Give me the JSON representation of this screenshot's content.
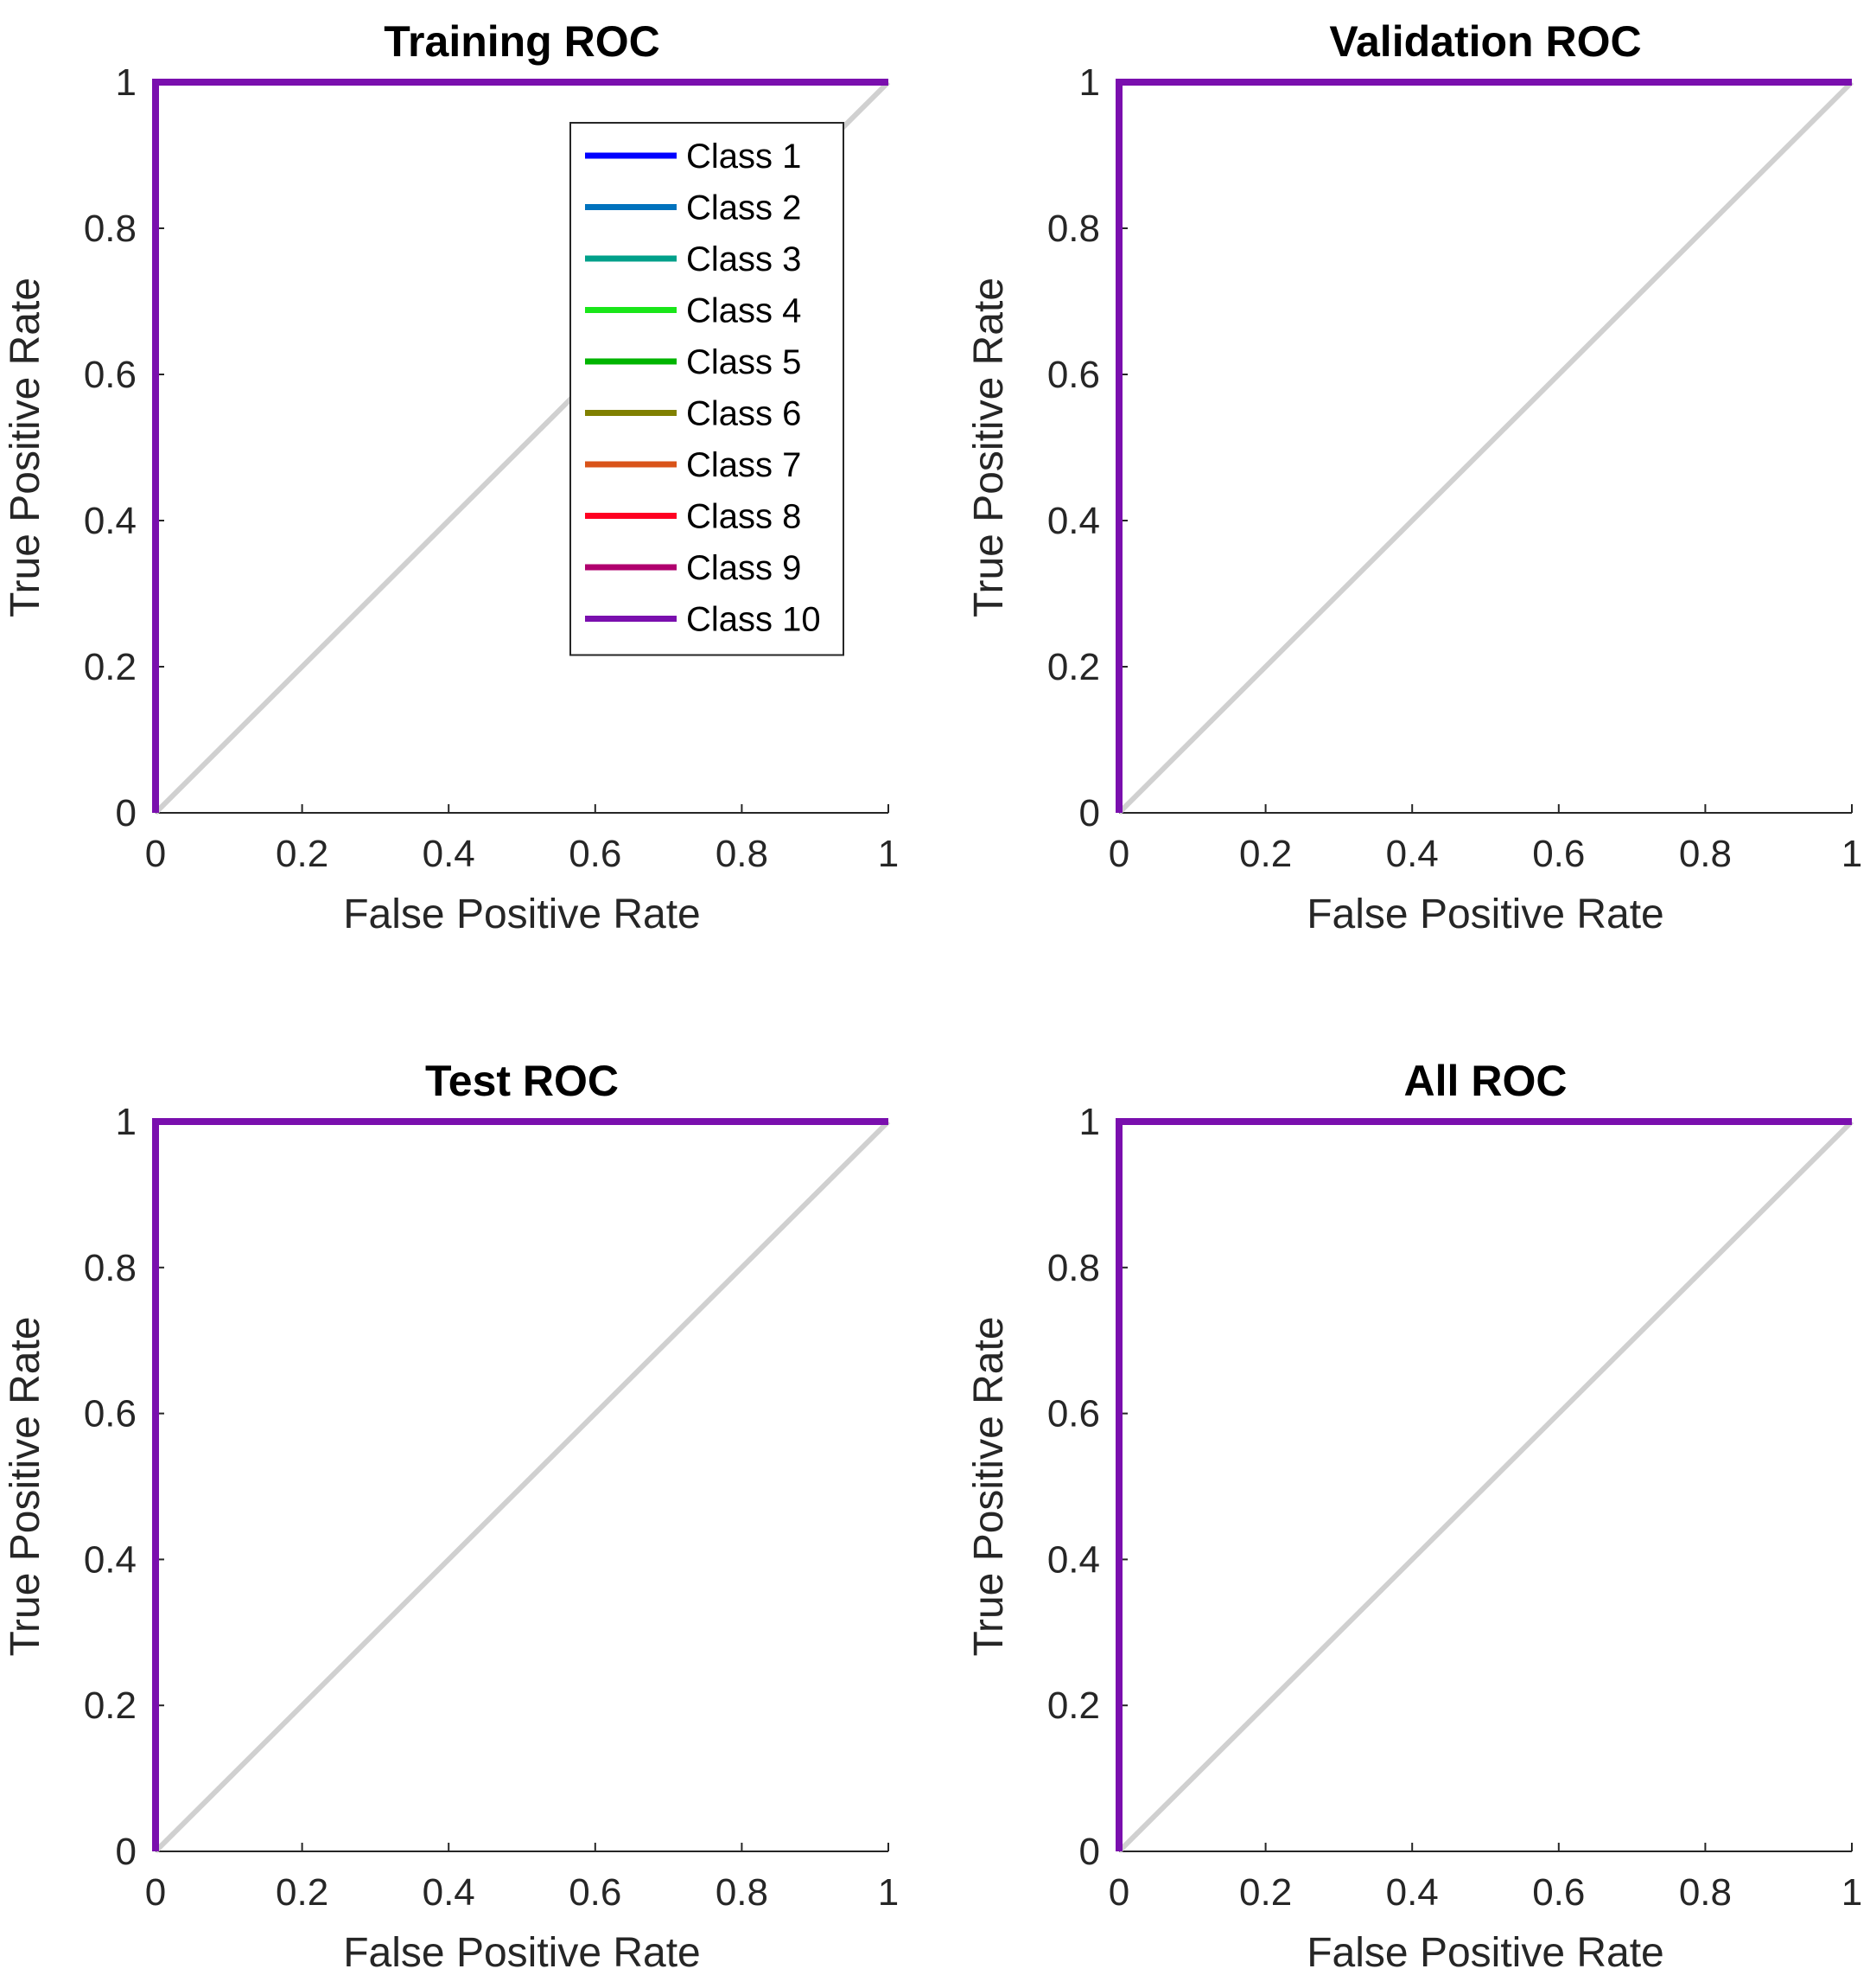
{
  "chart_data": [
    {
      "type": "line",
      "title": "Training ROC",
      "xlabel": "False Positive Rate",
      "ylabel": "True Positive Rate",
      "xlim": [
        0,
        1
      ],
      "ylim": [
        0,
        1
      ],
      "xticks": [
        "0",
        "0.2",
        "0.4",
        "0.6",
        "0.8",
        "1"
      ],
      "yticks": [
        "0",
        "0.2",
        "0.4",
        "0.6",
        "0.8",
        "1"
      ],
      "reference_line": {
        "x": [
          0,
          1
        ],
        "y": [
          0,
          1
        ],
        "color": "#d0d0d0"
      },
      "series": [
        {
          "name": "Class 1",
          "x": [
            0,
            0,
            1
          ],
          "y": [
            0,
            1,
            1
          ],
          "color": "#0000ff"
        },
        {
          "name": "Class 2",
          "x": [
            0,
            0,
            1
          ],
          "y": [
            0,
            1,
            1
          ],
          "color": "#0072bd"
        },
        {
          "name": "Class 3",
          "x": [
            0,
            0,
            1
          ],
          "y": [
            0,
            1,
            1
          ],
          "color": "#00a08a"
        },
        {
          "name": "Class 4",
          "x": [
            0,
            0,
            1
          ],
          "y": [
            0,
            1,
            1
          ],
          "color": "#19e619"
        },
        {
          "name": "Class 5",
          "x": [
            0,
            0,
            1
          ],
          "y": [
            0,
            1,
            1
          ],
          "color": "#00b400"
        },
        {
          "name": "Class 6",
          "x": [
            0,
            0,
            1
          ],
          "y": [
            0,
            1,
            1
          ],
          "color": "#808000"
        },
        {
          "name": "Class 7",
          "x": [
            0,
            0,
            1
          ],
          "y": [
            0,
            1,
            1
          ],
          "color": "#d95319"
        },
        {
          "name": "Class 8",
          "x": [
            0,
            0,
            1
          ],
          "y": [
            0,
            1,
            1
          ],
          "color": "#ff0022"
        },
        {
          "name": "Class 9",
          "x": [
            0,
            0,
            1
          ],
          "y": [
            0,
            1,
            1
          ],
          "color": "#b0006e"
        },
        {
          "name": "Class 10",
          "x": [
            0,
            0,
            1
          ],
          "y": [
            0,
            1,
            1
          ],
          "color": "#7a0fae"
        }
      ],
      "legend": {
        "show": true,
        "placement": "top-right"
      }
    },
    {
      "type": "line",
      "title": "Validation ROC",
      "xlabel": "False Positive Rate",
      "ylabel": "True Positive Rate",
      "xlim": [
        0,
        1
      ],
      "ylim": [
        0,
        1
      ],
      "xticks": [
        "0",
        "0.2",
        "0.4",
        "0.6",
        "0.8",
        "1"
      ],
      "yticks": [
        "0",
        "0.2",
        "0.4",
        "0.6",
        "0.8",
        "1"
      ],
      "reference_line": {
        "x": [
          0,
          1
        ],
        "y": [
          0,
          1
        ],
        "color": "#d0d0d0"
      },
      "series": [
        {
          "name": "Class 1",
          "x": [
            0,
            0,
            1
          ],
          "y": [
            0,
            1,
            1
          ],
          "color": "#0000ff"
        },
        {
          "name": "Class 2",
          "x": [
            0,
            0,
            1
          ],
          "y": [
            0,
            1,
            1
          ],
          "color": "#0072bd"
        },
        {
          "name": "Class 3",
          "x": [
            0,
            0,
            1
          ],
          "y": [
            0,
            1,
            1
          ],
          "color": "#00a08a"
        },
        {
          "name": "Class 4",
          "x": [
            0,
            0,
            1
          ],
          "y": [
            0,
            1,
            1
          ],
          "color": "#19e619"
        },
        {
          "name": "Class 5",
          "x": [
            0,
            0,
            1
          ],
          "y": [
            0,
            1,
            1
          ],
          "color": "#00b400"
        },
        {
          "name": "Class 6",
          "x": [
            0,
            0,
            1
          ],
          "y": [
            0,
            1,
            1
          ],
          "color": "#808000"
        },
        {
          "name": "Class 7",
          "x": [
            0,
            0,
            1
          ],
          "y": [
            0,
            1,
            1
          ],
          "color": "#d95319"
        },
        {
          "name": "Class 8",
          "x": [
            0,
            0,
            1
          ],
          "y": [
            0,
            1,
            1
          ],
          "color": "#ff0022"
        },
        {
          "name": "Class 9",
          "x": [
            0,
            0,
            1
          ],
          "y": [
            0,
            1,
            1
          ],
          "color": "#b0006e"
        },
        {
          "name": "Class 10",
          "x": [
            0,
            0,
            1
          ],
          "y": [
            0,
            1,
            1
          ],
          "color": "#7a0fae"
        }
      ],
      "legend": {
        "show": false
      }
    },
    {
      "type": "line",
      "title": "Test ROC",
      "xlabel": "False Positive Rate",
      "ylabel": "True Positive Rate",
      "xlim": [
        0,
        1
      ],
      "ylim": [
        0,
        1
      ],
      "xticks": [
        "0",
        "0.2",
        "0.4",
        "0.6",
        "0.8",
        "1"
      ],
      "yticks": [
        "0",
        "0.2",
        "0.4",
        "0.6",
        "0.8",
        "1"
      ],
      "reference_line": {
        "x": [
          0,
          1
        ],
        "y": [
          0,
          1
        ],
        "color": "#d0d0d0"
      },
      "series": [
        {
          "name": "Class 1",
          "x": [
            0,
            0,
            1
          ],
          "y": [
            0,
            1,
            1
          ],
          "color": "#0000ff"
        },
        {
          "name": "Class 2",
          "x": [
            0,
            0,
            1
          ],
          "y": [
            0,
            1,
            1
          ],
          "color": "#0072bd"
        },
        {
          "name": "Class 3",
          "x": [
            0,
            0,
            1
          ],
          "y": [
            0,
            1,
            1
          ],
          "color": "#00a08a"
        },
        {
          "name": "Class 4",
          "x": [
            0,
            0,
            1
          ],
          "y": [
            0,
            1,
            1
          ],
          "color": "#19e619"
        },
        {
          "name": "Class 5",
          "x": [
            0,
            0,
            1
          ],
          "y": [
            0,
            1,
            1
          ],
          "color": "#00b400"
        },
        {
          "name": "Class 6",
          "x": [
            0,
            0,
            1
          ],
          "y": [
            0,
            1,
            1
          ],
          "color": "#808000"
        },
        {
          "name": "Class 7",
          "x": [
            0,
            0,
            1
          ],
          "y": [
            0,
            1,
            1
          ],
          "color": "#d95319"
        },
        {
          "name": "Class 8",
          "x": [
            0,
            0,
            1
          ],
          "y": [
            0,
            1,
            1
          ],
          "color": "#ff0022"
        },
        {
          "name": "Class 9",
          "x": [
            0,
            0,
            1
          ],
          "y": [
            0,
            1,
            1
          ],
          "color": "#b0006e"
        },
        {
          "name": "Class 10",
          "x": [
            0,
            0,
            1
          ],
          "y": [
            0,
            1,
            1
          ],
          "color": "#7a0fae"
        }
      ],
      "legend": {
        "show": false
      }
    },
    {
      "type": "line",
      "title": "All ROC",
      "xlabel": "False Positive Rate",
      "ylabel": "True Positive Rate",
      "xlim": [
        0,
        1
      ],
      "ylim": [
        0,
        1
      ],
      "xticks": [
        "0",
        "0.2",
        "0.4",
        "0.6",
        "0.8",
        "1"
      ],
      "yticks": [
        "0",
        "0.2",
        "0.4",
        "0.6",
        "0.8",
        "1"
      ],
      "reference_line": {
        "x": [
          0,
          1
        ],
        "y": [
          0,
          1
        ],
        "color": "#d0d0d0"
      },
      "series": [
        {
          "name": "Class 1",
          "x": [
            0,
            0,
            1
          ],
          "y": [
            0,
            1,
            1
          ],
          "color": "#0000ff"
        },
        {
          "name": "Class 2",
          "x": [
            0,
            0,
            1
          ],
          "y": [
            0,
            1,
            1
          ],
          "color": "#0072bd"
        },
        {
          "name": "Class 3",
          "x": [
            0,
            0,
            1
          ],
          "y": [
            0,
            1,
            1
          ],
          "color": "#00a08a"
        },
        {
          "name": "Class 4",
          "x": [
            0,
            0,
            1
          ],
          "y": [
            0,
            1,
            1
          ],
          "color": "#19e619"
        },
        {
          "name": "Class 5",
          "x": [
            0,
            0,
            1
          ],
          "y": [
            0,
            1,
            1
          ],
          "color": "#00b400"
        },
        {
          "name": "Class 6",
          "x": [
            0,
            0,
            1
          ],
          "y": [
            0,
            1,
            1
          ],
          "color": "#808000"
        },
        {
          "name": "Class 7",
          "x": [
            0,
            0,
            1
          ],
          "y": [
            0,
            1,
            1
          ],
          "color": "#d95319"
        },
        {
          "name": "Class 8",
          "x": [
            0,
            0,
            1
          ],
          "y": [
            0,
            1,
            1
          ],
          "color": "#ff0022"
        },
        {
          "name": "Class 9",
          "x": [
            0,
            0,
            1
          ],
          "y": [
            0,
            1,
            1
          ],
          "color": "#b0006e"
        },
        {
          "name": "Class 10",
          "x": [
            0,
            0,
            1
          ],
          "y": [
            0,
            1,
            1
          ],
          "color": "#7a0fae"
        }
      ],
      "legend": {
        "show": false
      }
    }
  ]
}
